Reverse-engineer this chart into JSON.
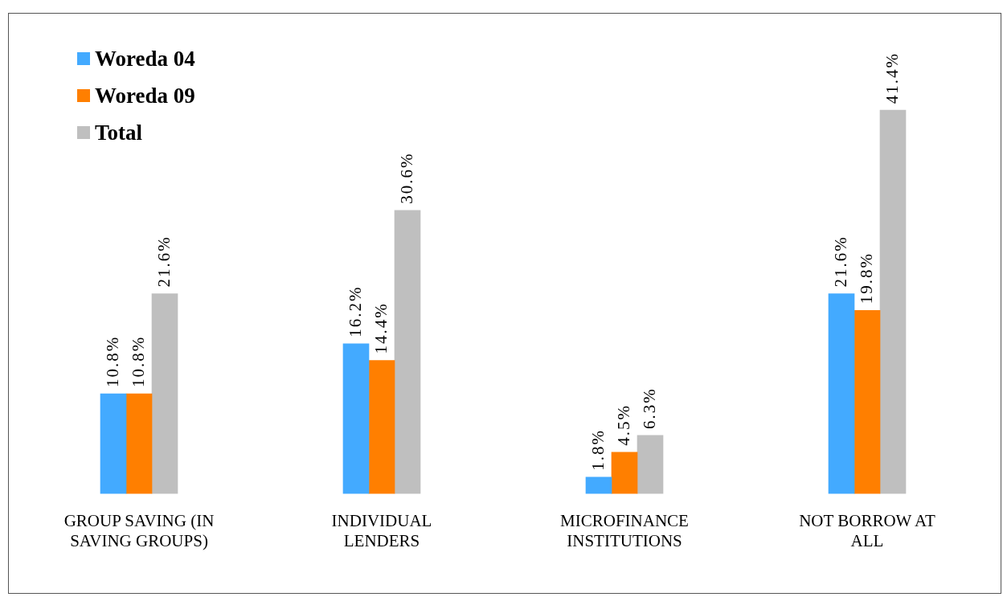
{
  "chart_data": {
    "type": "bar",
    "categories": [
      "GROUP SAVING (IN SAVING GROUPS)",
      "INDIVIDUAL LENDERS",
      "MICROFINANCE INSTITUTIONS",
      "NOT BORROW AT ALL"
    ],
    "series": [
      {
        "name": "Woreda 04",
        "color": "#43aaff",
        "values": [
          10.8,
          16.2,
          1.8,
          21.6
        ],
        "value_labels": [
          "10.8%",
          "16.2%",
          "1.8%",
          "21.6%"
        ]
      },
      {
        "name": "Woreda 09",
        "color": "#ff7f00",
        "values": [
          10.8,
          14.4,
          4.5,
          19.8
        ],
        "value_labels": [
          "10.8%",
          "14.4%",
          "4.5%",
          "19.8%"
        ]
      },
      {
        "name": "Total",
        "color": "#bfbfbf",
        "values": [
          21.6,
          30.6,
          6.3,
          41.4
        ],
        "value_labels": [
          "21.6%",
          "30.6%",
          "6.3%",
          "41.4%"
        ]
      }
    ],
    "legend": "top left",
    "grid": false
  }
}
